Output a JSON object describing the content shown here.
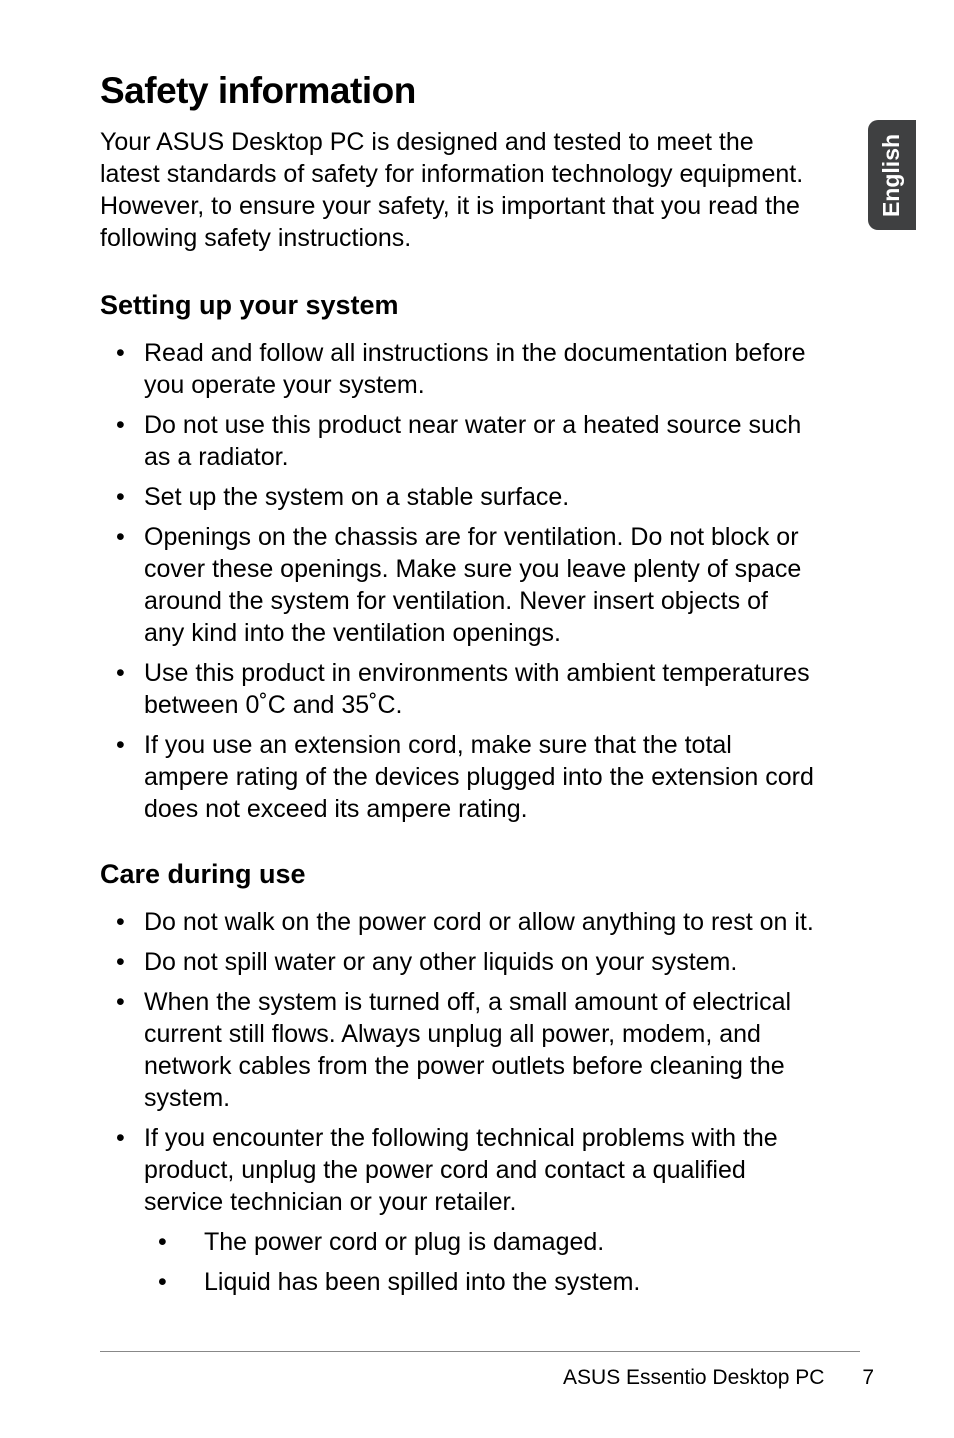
{
  "sideTab": {
    "text": "English",
    "bgColor": "#3f4041",
    "textColor": "#ffffff"
  },
  "heading": "Safety information",
  "intro": "Your ASUS Desktop PC is designed and tested to meet the latest standards of safety for information technology equipment. However, to ensure your safety, it is important that you read the following safety instructions.",
  "section1": {
    "title": "Setting up your system",
    "items": [
      "Read and follow all instructions in the documentation before you operate your system.",
      "Do not use this product near water or a heated source such as a radiator.",
      "Set up the system on a stable surface.",
      "Openings on the chassis are for ventilation. Do not block or cover these openings. Make sure you leave plenty of space around the system for ventilation. Never insert objects of any kind into the ventilation openings.",
      "Use this product in environments with ambient temperatures between 0˚C and 35˚C.",
      "If you use an extension cord, make sure that the total ampere rating of the devices plugged into the extension cord does not exceed its ampere rating."
    ]
  },
  "section2": {
    "title": "Care during use",
    "items": [
      "Do not walk on the power cord or allow anything to rest on it.",
      "Do not spill water or any other liquids on your system.",
      "When the system is turned off, a small amount of electrical current still flows. Always unplug all power, modem, and network cables from the power outlets before cleaning the system.",
      "If you encounter the following technical problems with the product, unplug the power cord and contact a qualified service technician or your retailer."
    ],
    "nestedItems": [
      "The power cord or plug is damaged.",
      "Liquid has been spilled into the system."
    ]
  },
  "footer": {
    "text": "ASUS Essentio Desktop PC",
    "pageNum": "7"
  }
}
